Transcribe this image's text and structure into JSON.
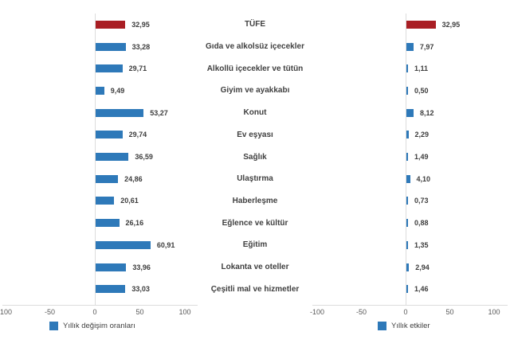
{
  "chart_data": {
    "type": "bar",
    "orientation": "horizontal",
    "title": "",
    "categories": [
      "TÜFE",
      "Gıda ve alkolsüz içecekler",
      "Alkollü içecekler ve tütün",
      "Giyim ve ayakkabı",
      "Konut",
      "Ev eşyası",
      "Sağlık",
      "Ulaştırma",
      "Haberleşme",
      "Eğlence ve kültür",
      "Eğitim",
      "Lokanta ve oteller",
      "Çeşitli mal ve hizmetler"
    ],
    "series": [
      {
        "name": "Yıllık değişim oranları",
        "values": [
          32.95,
          33.28,
          29.71,
          9.49,
          53.27,
          29.74,
          36.59,
          24.86,
          20.61,
          26.16,
          60.91,
          33.96,
          33.03
        ],
        "value_labels": [
          "32,95",
          "33,28",
          "29,71",
          "9,49",
          "53,27",
          "29,74",
          "36,59",
          "24,86",
          "20,61",
          "26,16",
          "60,91",
          "33,96",
          "33,03"
        ]
      },
      {
        "name": "Yıllık etkiler",
        "values": [
          32.95,
          7.97,
          1.11,
          0.5,
          8.12,
          2.29,
          1.49,
          4.1,
          0.73,
          0.88,
          1.35,
          2.94,
          1.46
        ],
        "value_labels": [
          "32,95",
          "7,97",
          "1,11",
          "0,50",
          "8,12",
          "2,29",
          "1,49",
          "4,10",
          "0,73",
          "0,88",
          "1,35",
          "2,94",
          "1,46"
        ]
      }
    ],
    "xlim": [
      -100,
      100
    ],
    "xticks": [
      -100,
      -50,
      0,
      50,
      100
    ],
    "xtick_labels": [
      "-100",
      "-50",
      "0",
      "50",
      "100"
    ],
    "highlight_index": 0,
    "legend_position": "bottom",
    "grid": false,
    "colors": {
      "bar": "#2e79b9",
      "highlight": "#a91e24",
      "axis": "#dcdcdc",
      "tick_text": "#595959",
      "value_text": "#3d3d3d",
      "label_text": "#404040"
    }
  }
}
